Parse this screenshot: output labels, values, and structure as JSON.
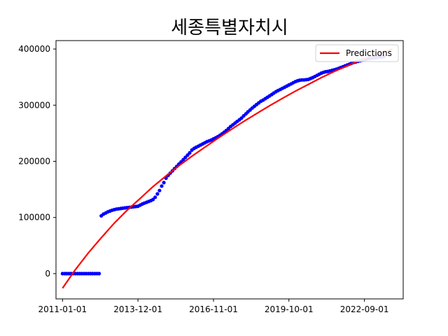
{
  "chart_data": {
    "type": "scatter",
    "title": "세종특별자치시",
    "xlabel": "",
    "ylabel": "",
    "x_axis": {
      "type": "date",
      "range": [
        "2010-10-01",
        "2024-03-01"
      ],
      "ticks": [
        "2011-01-01",
        "2013-12-01",
        "2016-11-01",
        "2019-10-01",
        "2022-09-01"
      ]
    },
    "y_axis": {
      "range": [
        -45000,
        415000
      ],
      "ticks": [
        0,
        100000,
        200000,
        300000,
        400000
      ],
      "tick_labels": [
        "0",
        "100000",
        "200000",
        "300000",
        "400000"
      ]
    },
    "grid": false,
    "legend": {
      "position": "top-right",
      "entries": [
        "Predictions"
      ]
    },
    "series": [
      {
        "kind": "points",
        "color": "#0000ff",
        "points": [
          [
            "2011-01-01",
            0
          ],
          [
            "2011-02-01",
            0
          ],
          [
            "2011-03-01",
            0
          ],
          [
            "2011-04-01",
            0
          ],
          [
            "2011-05-01",
            0
          ],
          [
            "2011-06-01",
            0
          ],
          [
            "2011-07-01",
            0
          ],
          [
            "2011-08-01",
            0
          ],
          [
            "2011-09-01",
            0
          ],
          [
            "2011-10-01",
            0
          ],
          [
            "2011-11-01",
            0
          ],
          [
            "2011-12-01",
            0
          ],
          [
            "2012-01-01",
            0
          ],
          [
            "2012-02-01",
            0
          ],
          [
            "2012-03-01",
            0
          ],
          [
            "2012-04-01",
            0
          ],
          [
            "2012-05-01",
            0
          ],
          [
            "2012-06-01",
            0
          ],
          [
            "2012-07-01",
            103000
          ],
          [
            "2012-08-01",
            106000
          ],
          [
            "2012-09-01",
            108000
          ],
          [
            "2012-10-01",
            110000
          ],
          [
            "2012-11-01",
            111500
          ],
          [
            "2012-12-01",
            113000
          ],
          [
            "2013-01-01",
            114000
          ],
          [
            "2013-02-01",
            115000
          ],
          [
            "2013-03-01",
            115500
          ],
          [
            "2013-04-01",
            116000
          ],
          [
            "2013-05-01",
            116500
          ],
          [
            "2013-06-01",
            117000
          ],
          [
            "2013-07-01",
            117500
          ],
          [
            "2013-08-01",
            118000
          ],
          [
            "2013-09-01",
            118500
          ],
          [
            "2013-10-01",
            119000
          ],
          [
            "2013-11-01",
            119500
          ],
          [
            "2013-12-01",
            120000
          ],
          [
            "2014-01-01",
            122000
          ],
          [
            "2014-02-01",
            124000
          ],
          [
            "2014-03-01",
            125500
          ],
          [
            "2014-04-01",
            127000
          ],
          [
            "2014-05-01",
            128500
          ],
          [
            "2014-06-01",
            130000
          ],
          [
            "2014-07-01",
            132000
          ],
          [
            "2014-08-01",
            136000
          ],
          [
            "2014-09-01",
            142000
          ],
          [
            "2014-10-01",
            148000
          ],
          [
            "2014-11-01",
            156000
          ],
          [
            "2014-12-01",
            162000
          ],
          [
            "2015-01-01",
            170000
          ],
          [
            "2015-02-01",
            175000
          ],
          [
            "2015-03-01",
            179000
          ],
          [
            "2015-04-01",
            183000
          ],
          [
            "2015-05-01",
            187000
          ],
          [
            "2015-06-01",
            191000
          ],
          [
            "2015-07-01",
            195000
          ],
          [
            "2015-08-01",
            199000
          ],
          [
            "2015-09-01",
            203000
          ],
          [
            "2015-10-01",
            207000
          ],
          [
            "2015-11-01",
            211000
          ],
          [
            "2015-12-01",
            215000
          ],
          [
            "2016-01-01",
            220000
          ],
          [
            "2016-02-01",
            223000
          ],
          [
            "2016-03-01",
            225000
          ],
          [
            "2016-04-01",
            227000
          ],
          [
            "2016-05-01",
            229000
          ],
          [
            "2016-06-01",
            231000
          ],
          [
            "2016-07-01",
            233000
          ],
          [
            "2016-08-01",
            235000
          ],
          [
            "2016-09-01",
            236500
          ],
          [
            "2016-10-01",
            238000
          ],
          [
            "2016-11-01",
            240000
          ],
          [
            "2016-12-01",
            242000
          ],
          [
            "2017-01-01",
            244000
          ],
          [
            "2017-02-01",
            246500
          ],
          [
            "2017-03-01",
            249000
          ],
          [
            "2017-04-01",
            252000
          ],
          [
            "2017-05-01",
            255000
          ],
          [
            "2017-06-01",
            258500
          ],
          [
            "2017-07-01",
            262000
          ],
          [
            "2017-08-01",
            265000
          ],
          [
            "2017-09-01",
            268000
          ],
          [
            "2017-10-01",
            271000
          ],
          [
            "2017-11-01",
            274000
          ],
          [
            "2017-12-01",
            277000
          ],
          [
            "2018-01-01",
            281000
          ],
          [
            "2018-02-01",
            284500
          ],
          [
            "2018-03-01",
            288000
          ],
          [
            "2018-04-01",
            291500
          ],
          [
            "2018-05-01",
            295000
          ],
          [
            "2018-06-01",
            298000
          ],
          [
            "2018-07-01",
            301000
          ],
          [
            "2018-08-01",
            304000
          ],
          [
            "2018-09-01",
            307000
          ],
          [
            "2018-10-01",
            309000
          ],
          [
            "2018-11-01",
            311500
          ],
          [
            "2018-12-01",
            314000
          ],
          [
            "2019-01-01",
            316500
          ],
          [
            "2019-02-01",
            319000
          ],
          [
            "2019-03-01",
            321500
          ],
          [
            "2019-04-01",
            324000
          ],
          [
            "2019-05-01",
            326000
          ],
          [
            "2019-06-01",
            328000
          ],
          [
            "2019-07-01",
            330000
          ],
          [
            "2019-08-01",
            332000
          ],
          [
            "2019-09-01",
            334000
          ],
          [
            "2019-10-01",
            336000
          ],
          [
            "2019-11-01",
            338000
          ],
          [
            "2019-12-01",
            340000
          ],
          [
            "2020-01-01",
            342000
          ],
          [
            "2020-02-01",
            343500
          ],
          [
            "2020-03-01",
            344500
          ],
          [
            "2020-04-01",
            345000
          ],
          [
            "2020-05-01",
            345000
          ],
          [
            "2020-06-01",
            345500
          ],
          [
            "2020-07-01",
            346000
          ],
          [
            "2020-08-01",
            347500
          ],
          [
            "2020-09-01",
            349000
          ],
          [
            "2020-10-01",
            351000
          ],
          [
            "2020-11-01",
            353000
          ],
          [
            "2020-12-01",
            355000
          ],
          [
            "2021-01-01",
            357000
          ],
          [
            "2021-02-01",
            358500
          ],
          [
            "2021-03-01",
            359500
          ],
          [
            "2021-04-01",
            360000
          ],
          [
            "2021-05-01",
            361000
          ],
          [
            "2021-06-01",
            362000
          ],
          [
            "2021-07-01",
            363000
          ],
          [
            "2021-08-01",
            364000
          ],
          [
            "2021-09-01",
            365500
          ],
          [
            "2021-10-01",
            367000
          ],
          [
            "2021-11-01",
            368500
          ],
          [
            "2021-12-01",
            370000
          ],
          [
            "2022-01-01",
            371500
          ],
          [
            "2022-02-01",
            373000
          ],
          [
            "2022-03-01",
            374500
          ],
          [
            "2022-04-01",
            376000
          ],
          [
            "2022-05-01",
            377000
          ],
          [
            "2022-06-01",
            378000
          ],
          [
            "2022-07-01",
            379000
          ],
          [
            "2022-08-01",
            380000
          ],
          [
            "2022-09-01",
            381000
          ],
          [
            "2022-10-01",
            382000
          ],
          [
            "2022-11-01",
            383000
          ],
          [
            "2022-12-01",
            383500
          ],
          [
            "2023-01-01",
            384000
          ],
          [
            "2023-02-01",
            384500
          ],
          [
            "2023-03-01",
            385000
          ],
          [
            "2023-04-01",
            385500
          ],
          [
            "2023-05-01",
            386000
          ],
          [
            "2023-06-01",
            386500
          ]
        ]
      },
      {
        "name": "Predictions",
        "kind": "line",
        "color": "#ff0000",
        "points": [
          [
            "2011-01-01",
            -26000
          ],
          [
            "2011-07-01",
            7000
          ],
          [
            "2012-01-01",
            37000
          ],
          [
            "2012-07-01",
            64000
          ],
          [
            "2013-01-01",
            90000
          ],
          [
            "2013-07-01",
            113000
          ],
          [
            "2014-01-01",
            134000
          ],
          [
            "2014-07-01",
            155000
          ],
          [
            "2015-01-01",
            174000
          ],
          [
            "2015-07-01",
            192000
          ],
          [
            "2016-01-01",
            209000
          ],
          [
            "2016-07-01",
            225000
          ],
          [
            "2017-01-01",
            241000
          ],
          [
            "2017-07-01",
            256000
          ],
          [
            "2018-01-01",
            271000
          ],
          [
            "2018-07-01",
            285000
          ],
          [
            "2019-01-01",
            299000
          ],
          [
            "2019-07-01",
            312000
          ],
          [
            "2020-01-01",
            325000
          ],
          [
            "2020-07-01",
            337000
          ],
          [
            "2021-01-01",
            349000
          ],
          [
            "2021-07-01",
            360000
          ],
          [
            "2022-01-01",
            370000
          ],
          [
            "2022-07-01",
            380000
          ],
          [
            "2023-01-01",
            388000
          ],
          [
            "2023-07-01",
            396000
          ],
          [
            "2023-10-01",
            400000
          ]
        ]
      }
    ]
  }
}
